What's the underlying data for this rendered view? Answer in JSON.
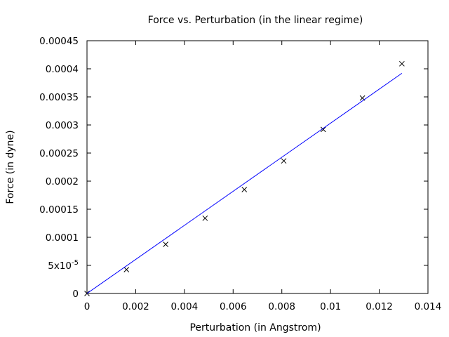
{
  "chart_data": {
    "type": "scatter",
    "title": "Force vs. Perturbation (in the linear regime)",
    "xlabel": "Perturbation (in Angstrom)",
    "ylabel": "Force (in dyne)",
    "xlim": [
      0,
      0.014
    ],
    "ylim": [
      0,
      0.00045
    ],
    "grid": false,
    "x_ticks": [
      {
        "value": 0,
        "label": "0"
      },
      {
        "value": 0.002,
        "label": "0.002"
      },
      {
        "value": 0.004,
        "label": "0.004"
      },
      {
        "value": 0.006,
        "label": "0.006"
      },
      {
        "value": 0.008,
        "label": "0.008"
      },
      {
        "value": 0.01,
        "label": "0.01"
      },
      {
        "value": 0.012,
        "label": "0.012"
      },
      {
        "value": 0.014,
        "label": "0.014"
      }
    ],
    "y_ticks": [
      {
        "value": 0,
        "label": "0"
      },
      {
        "value": 5e-05,
        "label": "5x10",
        "sup": "-5"
      },
      {
        "value": 0.0001,
        "label": "0.0001"
      },
      {
        "value": 0.00015,
        "label": "0.00015"
      },
      {
        "value": 0.0002,
        "label": "0.0002"
      },
      {
        "value": 0.00025,
        "label": "0.00025"
      },
      {
        "value": 0.0003,
        "label": "0.0003"
      },
      {
        "value": 0.00035,
        "label": "0.00035"
      },
      {
        "value": 0.0004,
        "label": "0.0004"
      },
      {
        "value": 0.00045,
        "label": "0.00045"
      }
    ],
    "series": [
      {
        "type": "scatter",
        "marker": "x",
        "color": "#000000",
        "x": [
          0,
          0.00162,
          0.00323,
          0.00485,
          0.00646,
          0.00808,
          0.0097,
          0.01131,
          0.01293
        ],
        "y": [
          0,
          4.25e-05,
          8.75e-05,
          0.000134,
          0.000185,
          0.000236,
          0.000292,
          0.000348,
          0.000409
        ]
      },
      {
        "type": "line",
        "color": "#0000ff",
        "x": [
          0,
          0.01293
        ],
        "y": [
          0,
          0.000392
        ]
      }
    ]
  }
}
